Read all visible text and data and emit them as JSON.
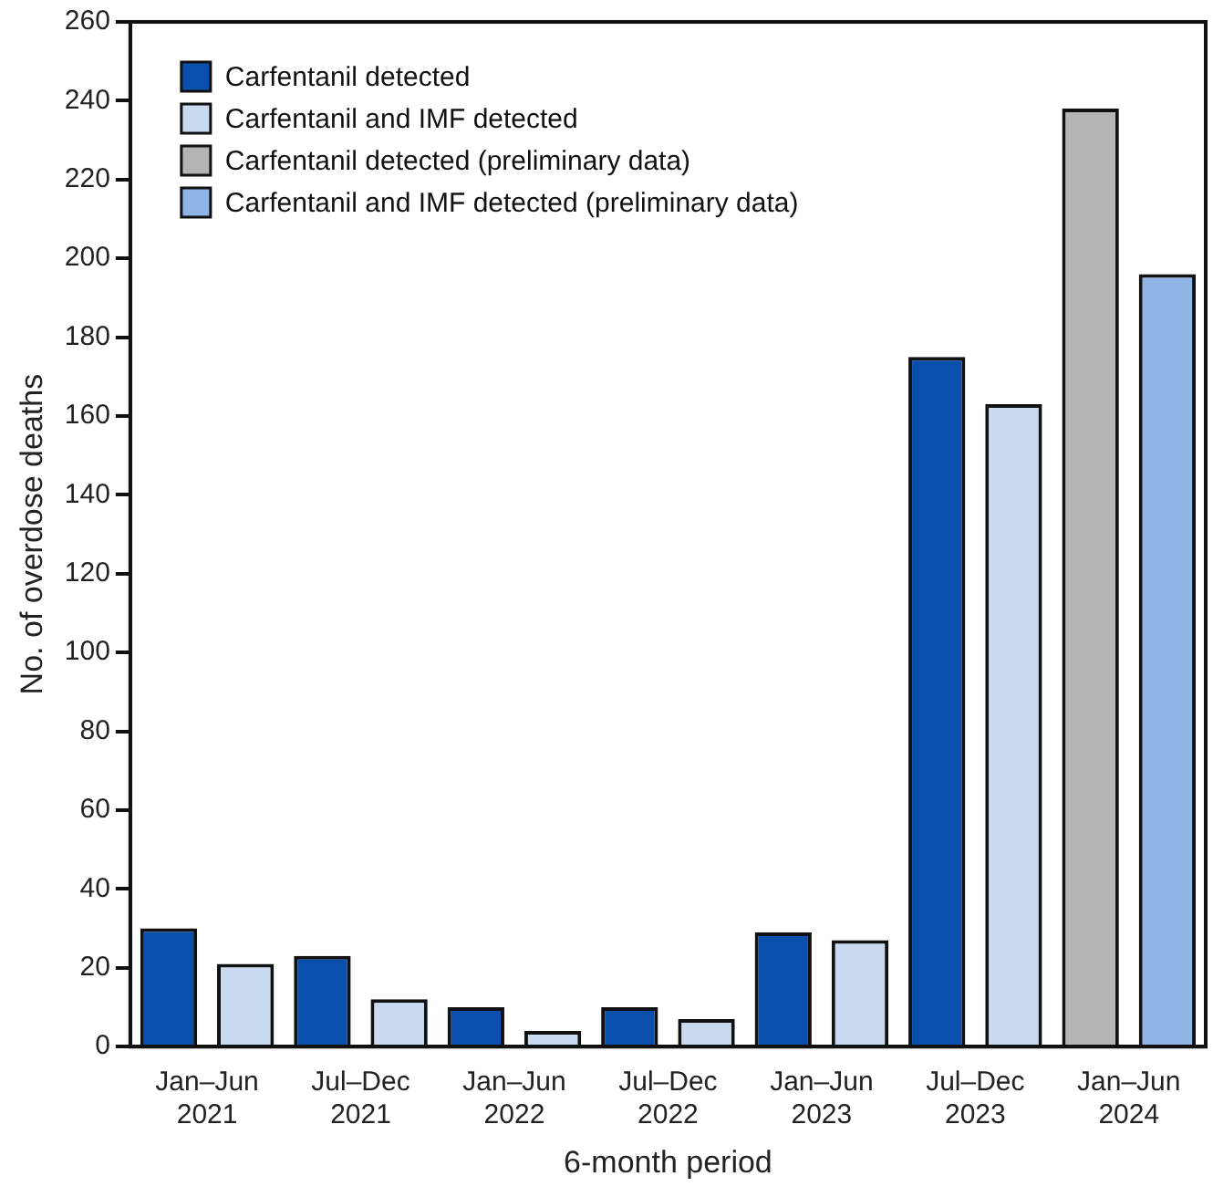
{
  "chart_data": {
    "type": "bar",
    "xlabel": "6-month period",
    "ylabel": "No. of overdose deaths",
    "categories": [
      "Jan–Jun 2021",
      "Jul–Dec 2021",
      "Jan–Jun 2022",
      "Jul–Dec 2022",
      "Jan–Jun 2023",
      "Jul–Dec 2023",
      "Jan–Jun 2024"
    ],
    "series": [
      {
        "name": "Carfentanil detected",
        "color": "#0b4fae",
        "values": [
          30,
          23,
          10,
          10,
          29,
          175,
          null
        ]
      },
      {
        "name": "Carfentanil and IMF detected",
        "color": "#c9d9ef",
        "values": [
          21,
          12,
          4,
          7,
          27,
          163,
          null
        ]
      },
      {
        "name": "Carfentanil detected (preliminary data)",
        "color": "#b4b4b4",
        "values": [
          null,
          null,
          null,
          null,
          null,
          null,
          238
        ]
      },
      {
        "name": "Carfentanil and IMF detected (preliminary data)",
        "color": "#8fb4e6",
        "values": [
          null,
          null,
          null,
          null,
          null,
          null,
          196
        ]
      }
    ],
    "ylim": [
      0,
      260
    ],
    "yticks": [
      0,
      20,
      40,
      60,
      80,
      100,
      120,
      140,
      160,
      180,
      200,
      220,
      240,
      260
    ],
    "grid": false,
    "legend": "top left"
  }
}
